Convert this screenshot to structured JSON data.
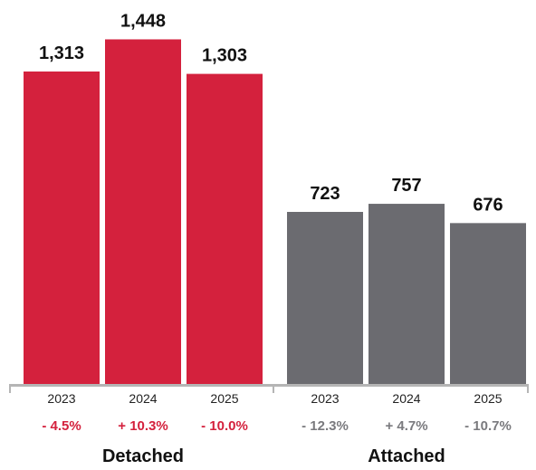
{
  "chart_data": {
    "type": "bar",
    "title": "",
    "xlabel": "",
    "ylabel": "",
    "ylim": [
      0,
      1500
    ],
    "grid": false,
    "legend": "none",
    "groups": [
      {
        "name": "Detached",
        "color": "#d4213d",
        "change_color": "#d4213d",
        "bars": [
          {
            "category": "2023",
            "value": 1313,
            "value_label": "1,313",
            "change": "- 4.5%"
          },
          {
            "category": "2024",
            "value": 1448,
            "value_label": "1,448",
            "change": "+ 10.3%"
          },
          {
            "category": "2025",
            "value": 1303,
            "value_label": "1,303",
            "change": "- 10.0%"
          }
        ]
      },
      {
        "name": "Attached",
        "color": "#6b6b70",
        "change_color": "#7a7a7e",
        "bars": [
          {
            "category": "2023",
            "value": 723,
            "value_label": "723",
            "change": "- 12.3%"
          },
          {
            "category": "2024",
            "value": 757,
            "value_label": "757",
            "change": "+ 4.7%"
          },
          {
            "category": "2025",
            "value": 676,
            "value_label": "676",
            "change": "- 10.7%"
          }
        ]
      }
    ],
    "axis_color": "#b5b5b5"
  }
}
